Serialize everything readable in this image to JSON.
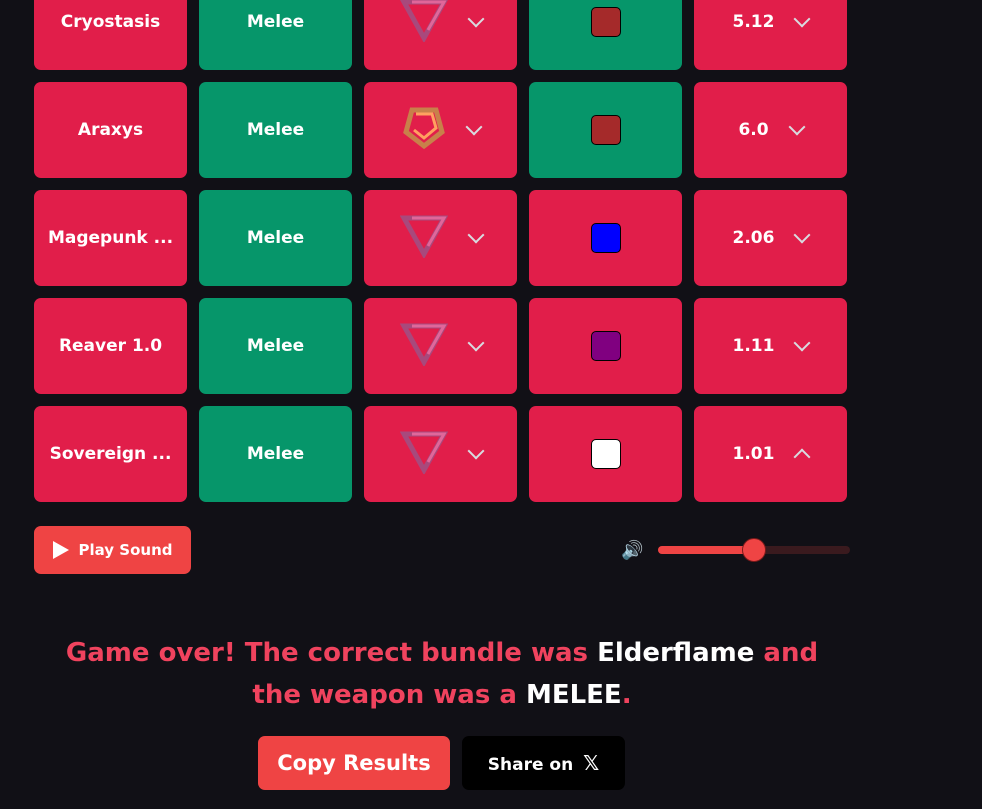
{
  "rows": [
    {
      "name": "Cryostasis",
      "type": "Melee",
      "tier_icon": "triangle-pink-icon",
      "color": "#a52a2a",
      "price": "5.12",
      "price_dir": "down",
      "name_ok": false,
      "type_ok": true,
      "tier_ok": false,
      "color_ok": true,
      "price_ok": false
    },
    {
      "name": "Araxys",
      "type": "Melee",
      "tier_icon": "pentagon-orange-icon",
      "color": "#a52a2a",
      "price": "6.0",
      "price_dir": "down",
      "name_ok": false,
      "type_ok": true,
      "tier_ok": false,
      "color_ok": true,
      "price_ok": false
    },
    {
      "name": "Magepunk ...",
      "type": "Melee",
      "tier_icon": "triangle-pink-icon",
      "color": "#0000ff",
      "price": "2.06",
      "price_dir": "down",
      "name_ok": false,
      "type_ok": true,
      "tier_ok": false,
      "color_ok": false,
      "price_ok": false
    },
    {
      "name": "Reaver 1.0",
      "type": "Melee",
      "tier_icon": "triangle-pink-icon",
      "color": "#800080",
      "price": "1.11",
      "price_dir": "down",
      "name_ok": false,
      "type_ok": true,
      "tier_ok": false,
      "color_ok": false,
      "price_ok": false
    },
    {
      "name": "Sovereign ...",
      "type": "Melee",
      "tier_icon": "triangle-pink-icon",
      "color": "#ffffff",
      "price": "1.01",
      "price_dir": "up",
      "name_ok": false,
      "type_ok": true,
      "tier_ok": false,
      "color_ok": false,
      "price_ok": false
    }
  ],
  "controls": {
    "play_label": "Play Sound",
    "volume": 0.5
  },
  "result": {
    "pre": "Game over! The correct bundle was ",
    "bundle": "Elderflame",
    "mid": " and the weapon was a ",
    "weapon": "MELEE",
    "end": "."
  },
  "buttons": {
    "copy": "Copy Results",
    "share": "Share on"
  },
  "colors": {
    "correct": "#06966a",
    "wrong": "#e11e4a",
    "accent": "#ef4444"
  }
}
